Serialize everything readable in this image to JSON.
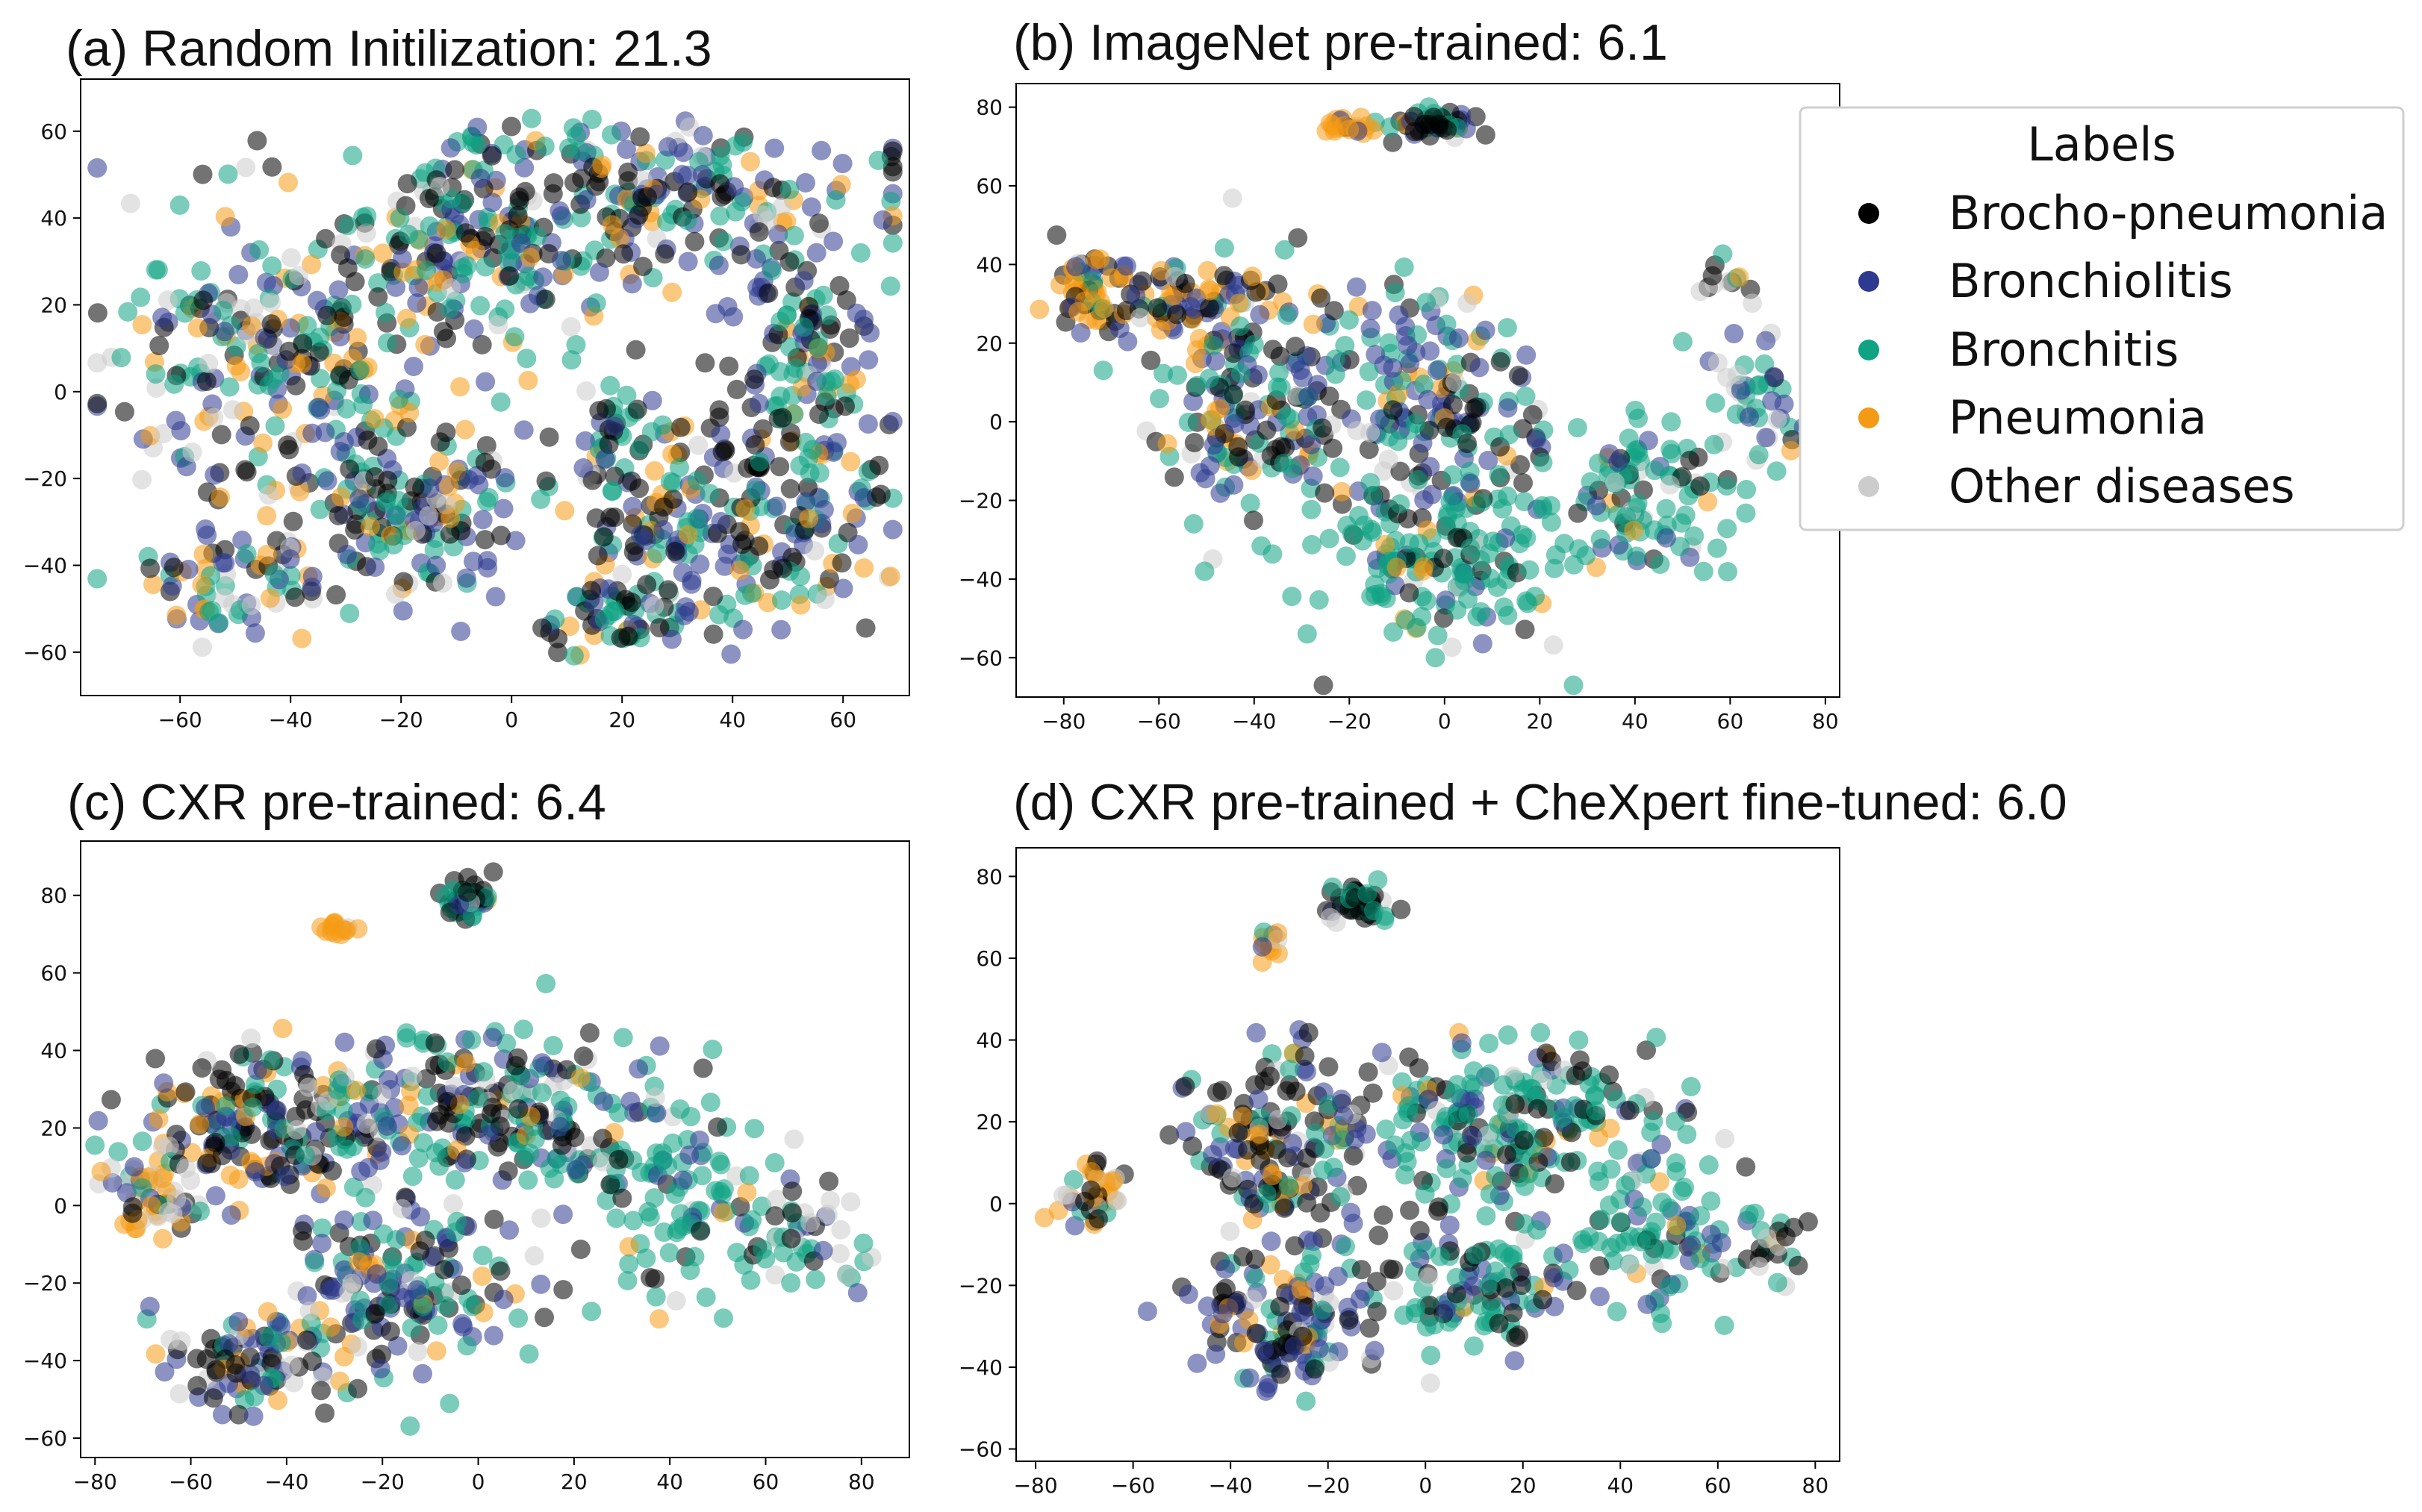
{
  "colors": {
    "Brocho-pneumonia": "#000000",
    "Bronchiolitis": "#2e3a8f",
    "Bronchitis": "#0fa383",
    "Pneumonia": "#f59a14",
    "Other diseases": "#cccccc"
  },
  "legend": {
    "title": "Labels",
    "entries": [
      {
        "label": "Brocho-pneumonia",
        "color": "#000000"
      },
      {
        "label": "Bronchiolitis",
        "color": "#2e3a8f"
      },
      {
        "label": "Bronchitis",
        "color": "#0fa383"
      },
      {
        "label": "Pneumonia",
        "color": "#f59a14"
      },
      {
        "label": "Other diseases",
        "color": "#cccccc"
      }
    ]
  },
  "chart_data": [
    {
      "type": "scatter",
      "panel": "a",
      "title": "(a) Random Initilization: 21.3",
      "xlim": [
        -78,
        72
      ],
      "ylim": [
        -70,
        72
      ],
      "xticks": [
        -60,
        -40,
        -20,
        0,
        20,
        40,
        60
      ],
      "yticks": [
        -60,
        -40,
        -20,
        0,
        20,
        40,
        60
      ],
      "clusters": [
        {
          "cx": 20,
          "cy": 45,
          "rx": 42,
          "ry": 16,
          "n": 230,
          "mix": [
            0.25,
            0.22,
            0.33,
            0.12,
            0.08
          ]
        },
        {
          "cx": -10,
          "cy": 30,
          "rx": 22,
          "ry": 20,
          "n": 150,
          "mix": [
            0.25,
            0.22,
            0.33,
            0.12,
            0.08
          ]
        },
        {
          "cx": 52,
          "cy": 10,
          "rx": 14,
          "ry": 30,
          "n": 150,
          "mix": [
            0.25,
            0.22,
            0.33,
            0.12,
            0.08
          ]
        },
        {
          "cx": -42,
          "cy": 5,
          "rx": 28,
          "ry": 32,
          "n": 240,
          "mix": [
            0.22,
            0.22,
            0.26,
            0.15,
            0.15
          ]
        },
        {
          "cx": -18,
          "cy": -25,
          "rx": 20,
          "ry": 20,
          "n": 150,
          "mix": [
            0.25,
            0.25,
            0.22,
            0.15,
            0.13
          ]
        },
        {
          "cx": 38,
          "cy": -30,
          "rx": 26,
          "ry": 22,
          "n": 210,
          "mix": [
            0.28,
            0.25,
            0.28,
            0.12,
            0.07
          ]
        },
        {
          "cx": 18,
          "cy": -12,
          "rx": 6,
          "ry": 12,
          "n": 40,
          "mix": [
            0.3,
            0.2,
            0.3,
            0.12,
            0.08
          ]
        },
        {
          "cx": 20,
          "cy": -52,
          "rx": 14,
          "ry": 8,
          "n": 60,
          "mix": [
            0.28,
            0.22,
            0.3,
            0.12,
            0.08
          ]
        },
        {
          "cx": -50,
          "cy": -45,
          "rx": 16,
          "ry": 12,
          "n": 70,
          "mix": [
            0.2,
            0.25,
            0.25,
            0.15,
            0.15
          ]
        }
      ]
    },
    {
      "type": "scatter",
      "panel": "b",
      "title": "(b) ImageNet pre-trained: 6.1",
      "xlim": [
        -90,
        83
      ],
      "ylim": [
        -70,
        86
      ],
      "xticks": [
        -80,
        -60,
        -40,
        -20,
        0,
        20,
        40,
        60,
        80
      ],
      "yticks": [
        -60,
        -40,
        -20,
        0,
        20,
        40,
        60,
        80
      ],
      "clusters": [
        {
          "cx": -2,
          "cy": 76,
          "rx": 9,
          "ry": 3,
          "n": 45,
          "mix": [
            0.5,
            0.1,
            0.3,
            0.05,
            0.05
          ]
        },
        {
          "cx": -20,
          "cy": 75,
          "rx": 5,
          "ry": 3,
          "n": 20,
          "mix": [
            0.05,
            0.05,
            0.05,
            0.75,
            0.1
          ]
        },
        {
          "cx": -75,
          "cy": 32,
          "rx": 8,
          "ry": 10,
          "n": 60,
          "mix": [
            0.3,
            0.1,
            0.05,
            0.5,
            0.05
          ]
        },
        {
          "cx": -55,
          "cy": 30,
          "rx": 14,
          "ry": 10,
          "n": 70,
          "mix": [
            0.35,
            0.25,
            0.05,
            0.3,
            0.05
          ]
        },
        {
          "cx": -40,
          "cy": 5,
          "rx": 18,
          "ry": 30,
          "n": 170,
          "mix": [
            0.32,
            0.25,
            0.25,
            0.1,
            0.08
          ]
        },
        {
          "cx": -5,
          "cy": 5,
          "rx": 25,
          "ry": 25,
          "n": 170,
          "mix": [
            0.25,
            0.3,
            0.3,
            0.07,
            0.08
          ]
        },
        {
          "cx": 0,
          "cy": -35,
          "rx": 25,
          "ry": 20,
          "n": 160,
          "mix": [
            0.12,
            0.12,
            0.66,
            0.05,
            0.05
          ]
        },
        {
          "cx": 40,
          "cy": -20,
          "rx": 20,
          "ry": 20,
          "n": 110,
          "mix": [
            0.1,
            0.15,
            0.6,
            0.05,
            0.1
          ]
        },
        {
          "cx": 65,
          "cy": 5,
          "rx": 10,
          "ry": 15,
          "n": 40,
          "mix": [
            0.08,
            0.2,
            0.47,
            0.05,
            0.2
          ]
        },
        {
          "cx": 58,
          "cy": 35,
          "rx": 8,
          "ry": 6,
          "n": 12,
          "mix": [
            0.3,
            0.05,
            0.15,
            0.2,
            0.3
          ]
        }
      ]
    },
    {
      "type": "scatter",
      "panel": "c",
      "title": "(c) CXR pre-trained: 6.4",
      "xlim": [
        -83,
        90
      ],
      "ylim": [
        -65,
        94
      ],
      "xticks": [
        -80,
        -60,
        -40,
        -20,
        0,
        20,
        40,
        60,
        80
      ],
      "yticks": [
        -60,
        -40,
        -20,
        0,
        20,
        40,
        60,
        80
      ],
      "clusters": [
        {
          "cx": -2,
          "cy": 79,
          "rx": 5,
          "ry": 5,
          "n": 50,
          "mix": [
            0.4,
            0.05,
            0.45,
            0.05,
            0.05
          ]
        },
        {
          "cx": -30,
          "cy": 71,
          "rx": 4,
          "ry": 3,
          "n": 14,
          "mix": [
            0.05,
            0.05,
            0.05,
            0.7,
            0.15
          ]
        },
        {
          "cx": -45,
          "cy": 20,
          "rx": 25,
          "ry": 16,
          "n": 180,
          "mix": [
            0.38,
            0.22,
            0.16,
            0.16,
            0.08
          ]
        },
        {
          "cx": -68,
          "cy": 3,
          "rx": 10,
          "ry": 10,
          "n": 60,
          "mix": [
            0.2,
            0.1,
            0.1,
            0.3,
            0.3
          ]
        },
        {
          "cx": 0,
          "cy": 25,
          "rx": 30,
          "ry": 18,
          "n": 220,
          "mix": [
            0.28,
            0.25,
            0.32,
            0.08,
            0.07
          ]
        },
        {
          "cx": -15,
          "cy": -20,
          "rx": 25,
          "ry": 20,
          "n": 170,
          "mix": [
            0.25,
            0.35,
            0.25,
            0.08,
            0.07
          ]
        },
        {
          "cx": -45,
          "cy": -40,
          "rx": 18,
          "ry": 12,
          "n": 90,
          "mix": [
            0.3,
            0.3,
            0.15,
            0.15,
            0.1
          ]
        },
        {
          "cx": 40,
          "cy": 5,
          "rx": 22,
          "ry": 25,
          "n": 120,
          "mix": [
            0.12,
            0.15,
            0.58,
            0.05,
            0.1
          ]
        },
        {
          "cx": 68,
          "cy": -10,
          "rx": 12,
          "ry": 12,
          "n": 40,
          "mix": [
            0.12,
            0.08,
            0.35,
            0.05,
            0.4
          ]
        }
      ]
    },
    {
      "type": "scatter",
      "panel": "d",
      "title": "(d) CXR pre-trained + CheXpert fine-tuned: 6.0",
      "xlim": [
        -84,
        85
      ],
      "ylim": [
        -63,
        87
      ],
      "xticks": [
        -80,
        -60,
        -40,
        -20,
        0,
        20,
        40,
        60,
        80
      ],
      "yticks": [
        -60,
        -40,
        -20,
        0,
        20,
        40,
        60,
        80
      ],
      "clusters": [
        {
          "cx": -13,
          "cy": 73,
          "rx": 7,
          "ry": 4,
          "n": 45,
          "mix": [
            0.5,
            0.05,
            0.35,
            0.05,
            0.05
          ]
        },
        {
          "cx": -32,
          "cy": 63,
          "rx": 3,
          "ry": 3,
          "n": 12,
          "mix": [
            0.05,
            0.05,
            0.1,
            0.7,
            0.1
          ]
        },
        {
          "cx": -68,
          "cy": 3,
          "rx": 7,
          "ry": 8,
          "n": 40,
          "mix": [
            0.25,
            0.1,
            0.1,
            0.35,
            0.2
          ]
        },
        {
          "cx": -30,
          "cy": 15,
          "rx": 18,
          "ry": 20,
          "n": 160,
          "mix": [
            0.35,
            0.3,
            0.15,
            0.12,
            0.08
          ]
        },
        {
          "cx": 15,
          "cy": 20,
          "rx": 30,
          "ry": 18,
          "n": 230,
          "mix": [
            0.2,
            0.15,
            0.55,
            0.05,
            0.05
          ]
        },
        {
          "cx": -30,
          "cy": -30,
          "rx": 18,
          "ry": 16,
          "n": 130,
          "mix": [
            0.32,
            0.38,
            0.15,
            0.08,
            0.07
          ]
        },
        {
          "cx": 10,
          "cy": -20,
          "rx": 22,
          "ry": 16,
          "n": 120,
          "mix": [
            0.18,
            0.22,
            0.47,
            0.05,
            0.08
          ]
        },
        {
          "cx": 50,
          "cy": -10,
          "rx": 22,
          "ry": 16,
          "n": 90,
          "mix": [
            0.12,
            0.12,
            0.6,
            0.04,
            0.12
          ]
        },
        {
          "cx": 72,
          "cy": -12,
          "rx": 6,
          "ry": 6,
          "n": 15,
          "mix": [
            0.3,
            0.05,
            0.3,
            0.05,
            0.3
          ]
        }
      ]
    }
  ]
}
